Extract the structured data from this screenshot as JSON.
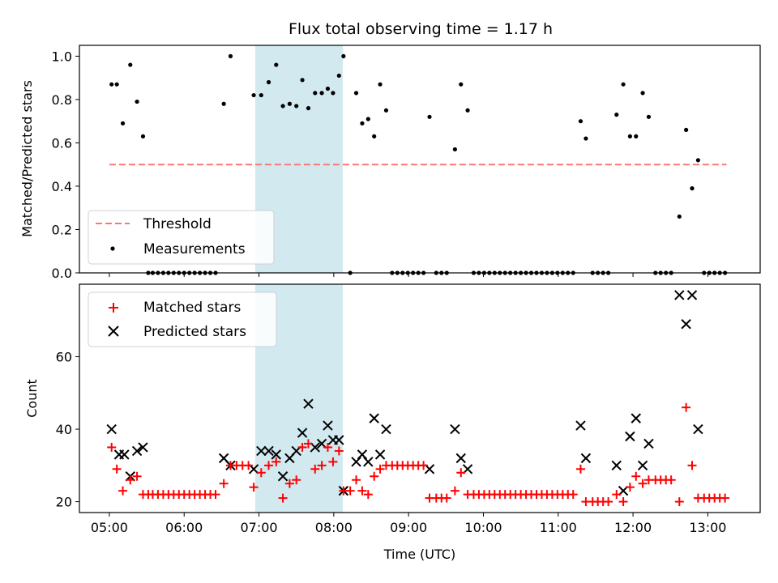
{
  "chart_data": [
    {
      "type": "scatter",
      "title": "Flux total observing time = 1.17 h",
      "xlabel": "",
      "ylabel": "Matched/Predicted stars",
      "xlim": [
        4.6,
        13.7
      ],
      "ylim": [
        0.0,
        1.05
      ],
      "yticks": [
        "0.0",
        "0.2",
        "0.4",
        "0.6",
        "0.8",
        "1.0"
      ],
      "highlight_span": {
        "x0": 6.95,
        "x1": 8.12,
        "color": "#d2e9f0"
      },
      "grid": false,
      "legend": {
        "position": "lower-left",
        "entries": [
          "Threshold",
          "Measurements"
        ]
      },
      "series": [
        {
          "name": "Threshold",
          "kind": "line",
          "color": "#ff7575",
          "x": [
            5.0,
            13.25
          ],
          "y": [
            0.5,
            0.5
          ]
        },
        {
          "name": "Measurements",
          "kind": "points",
          "color": "#000000",
          "points": [
            [
              5.03,
              0.87
            ],
            [
              5.1,
              0.87
            ],
            [
              5.18,
              0.69
            ],
            [
              5.28,
              0.96
            ],
            [
              5.37,
              0.79
            ],
            [
              5.45,
              0.63
            ],
            [
              5.52,
              0
            ],
            [
              5.58,
              0
            ],
            [
              5.65,
              0
            ],
            [
              5.72,
              0
            ],
            [
              5.79,
              0
            ],
            [
              5.86,
              0
            ],
            [
              5.93,
              0
            ],
            [
              6.0,
              0
            ],
            [
              6.07,
              0
            ],
            [
              6.14,
              0
            ],
            [
              6.21,
              0
            ],
            [
              6.28,
              0
            ],
            [
              6.35,
              0
            ],
            [
              6.42,
              0
            ],
            [
              6.53,
              0.78
            ],
            [
              6.62,
              1.0
            ],
            [
              6.93,
              0.82
            ],
            [
              7.03,
              0.82
            ],
            [
              7.13,
              0.88
            ],
            [
              7.23,
              0.96
            ],
            [
              7.32,
              0.77
            ],
            [
              7.41,
              0.78
            ],
            [
              7.5,
              0.77
            ],
            [
              7.58,
              0.89
            ],
            [
              7.66,
              0.76
            ],
            [
              7.75,
              0.83
            ],
            [
              7.84,
              0.83
            ],
            [
              7.92,
              0.85
            ],
            [
              7.99,
              0.83
            ],
            [
              8.07,
              0.91
            ],
            [
              8.13,
              1.0
            ],
            [
              8.22,
              0
            ],
            [
              8.3,
              0.83
            ],
            [
              8.38,
              0.69
            ],
            [
              8.46,
              0.71
            ],
            [
              8.54,
              0.63
            ],
            [
              8.62,
              0.87
            ],
            [
              8.7,
              0.75
            ],
            [
              8.78,
              0
            ],
            [
              8.85,
              0
            ],
            [
              8.92,
              0
            ],
            [
              8.99,
              0
            ],
            [
              9.06,
              0
            ],
            [
              9.13,
              0
            ],
            [
              9.2,
              0
            ],
            [
              9.28,
              0.72
            ],
            [
              9.37,
              0
            ],
            [
              9.44,
              0
            ],
            [
              9.51,
              0
            ],
            [
              9.62,
              0.57
            ],
            [
              9.7,
              0.87
            ],
            [
              9.79,
              0.75
            ],
            [
              9.87,
              0
            ],
            [
              9.94,
              0
            ],
            [
              10.01,
              0
            ],
            [
              10.08,
              0
            ],
            [
              10.15,
              0
            ],
            [
              10.22,
              0
            ],
            [
              10.29,
              0
            ],
            [
              10.36,
              0
            ],
            [
              10.43,
              0
            ],
            [
              10.5,
              0
            ],
            [
              10.57,
              0
            ],
            [
              10.64,
              0
            ],
            [
              10.71,
              0
            ],
            [
              10.78,
              0
            ],
            [
              10.85,
              0
            ],
            [
              10.92,
              0
            ],
            [
              10.99,
              0
            ],
            [
              11.06,
              0
            ],
            [
              11.13,
              0
            ],
            [
              11.2,
              0
            ],
            [
              11.3,
              0.7
            ],
            [
              11.37,
              0.62
            ],
            [
              11.46,
              0
            ],
            [
              11.53,
              0
            ],
            [
              11.6,
              0
            ],
            [
              11.67,
              0
            ],
            [
              11.78,
              0.73
            ],
            [
              11.87,
              0.87
            ],
            [
              11.96,
              0.63
            ],
            [
              12.04,
              0.63
            ],
            [
              12.13,
              0.83
            ],
            [
              12.21,
              0.72
            ],
            [
              12.3,
              0
            ],
            [
              12.37,
              0
            ],
            [
              12.44,
              0
            ],
            [
              12.51,
              0
            ],
            [
              12.62,
              0.26
            ],
            [
              12.71,
              0.66
            ],
            [
              12.79,
              0.39
            ],
            [
              12.87,
              0.52
            ],
            [
              12.95,
              0
            ],
            [
              13.02,
              0
            ],
            [
              13.09,
              0
            ],
            [
              13.16,
              0
            ],
            [
              13.23,
              0
            ]
          ]
        }
      ]
    },
    {
      "type": "scatter",
      "title": "",
      "xlabel": "Time (UTC)",
      "ylabel": "Count",
      "xlim": [
        4.6,
        13.7
      ],
      "ylim": [
        17,
        80
      ],
      "xticks": [
        5,
        6,
        7,
        8,
        9,
        10,
        11,
        12,
        13
      ],
      "xtick_labels": [
        "05:00",
        "06:00",
        "07:00",
        "08:00",
        "09:00",
        "10:00",
        "11:00",
        "12:00",
        "13:00"
      ],
      "yticks": [
        "20",
        "40",
        "60"
      ],
      "highlight_span": {
        "x0": 6.95,
        "x1": 8.12,
        "color": "#d2e9f0"
      },
      "grid": false,
      "legend": {
        "position": "upper-left",
        "entries": [
          "Matched stars",
          "Predicted stars"
        ]
      },
      "series": [
        {
          "name": "Matched stars",
          "kind": "plus",
          "color": "#ff0000",
          "points": [
            [
              5.03,
              35
            ],
            [
              5.1,
              29
            ],
            [
              5.18,
              23
            ],
            [
              5.28,
              26
            ],
            [
              5.37,
              27
            ],
            [
              5.45,
              22
            ],
            [
              5.52,
              22
            ],
            [
              5.58,
              22
            ],
            [
              5.65,
              22
            ],
            [
              5.72,
              22
            ],
            [
              5.79,
              22
            ],
            [
              5.86,
              22
            ],
            [
              5.93,
              22
            ],
            [
              6.0,
              22
            ],
            [
              6.07,
              22
            ],
            [
              6.14,
              22
            ],
            [
              6.21,
              22
            ],
            [
              6.28,
              22
            ],
            [
              6.35,
              22
            ],
            [
              6.42,
              22
            ],
            [
              6.53,
              25
            ],
            [
              6.62,
              30
            ],
            [
              6.7,
              30
            ],
            [
              6.78,
              30
            ],
            [
              6.86,
              30
            ],
            [
              6.93,
              24
            ],
            [
              7.03,
              28
            ],
            [
              7.13,
              30
            ],
            [
              7.23,
              31
            ],
            [
              7.32,
              21
            ],
            [
              7.41,
              25
            ],
            [
              7.5,
              26
            ],
            [
              7.58,
              35
            ],
            [
              7.66,
              36
            ],
            [
              7.75,
              29
            ],
            [
              7.84,
              30
            ],
            [
              7.92,
              35
            ],
            [
              7.99,
              31
            ],
            [
              8.07,
              34
            ],
            [
              8.13,
              23
            ],
            [
              8.22,
              23
            ],
            [
              8.3,
              26
            ],
            [
              8.38,
              23
            ],
            [
              8.46,
              22
            ],
            [
              8.54,
              27
            ],
            [
              8.62,
              29
            ],
            [
              8.7,
              30
            ],
            [
              8.78,
              30
            ],
            [
              8.85,
              30
            ],
            [
              8.92,
              30
            ],
            [
              8.99,
              30
            ],
            [
              9.06,
              30
            ],
            [
              9.13,
              30
            ],
            [
              9.2,
              30
            ],
            [
              9.28,
              21
            ],
            [
              9.37,
              21
            ],
            [
              9.44,
              21
            ],
            [
              9.51,
              21
            ],
            [
              9.62,
              23
            ],
            [
              9.7,
              28
            ],
            [
              9.79,
              22
            ],
            [
              9.87,
              22
            ],
            [
              9.94,
              22
            ],
            [
              10.01,
              22
            ],
            [
              10.08,
              22
            ],
            [
              10.15,
              22
            ],
            [
              10.22,
              22
            ],
            [
              10.29,
              22
            ],
            [
              10.36,
              22
            ],
            [
              10.43,
              22
            ],
            [
              10.5,
              22
            ],
            [
              10.57,
              22
            ],
            [
              10.64,
              22
            ],
            [
              10.71,
              22
            ],
            [
              10.78,
              22
            ],
            [
              10.85,
              22
            ],
            [
              10.92,
              22
            ],
            [
              10.99,
              22
            ],
            [
              11.06,
              22
            ],
            [
              11.13,
              22
            ],
            [
              11.2,
              22
            ],
            [
              11.3,
              29
            ],
            [
              11.37,
              20
            ],
            [
              11.46,
              20
            ],
            [
              11.53,
              20
            ],
            [
              11.6,
              20
            ],
            [
              11.67,
              20
            ],
            [
              11.78,
              22
            ],
            [
              11.87,
              20
            ],
            [
              11.96,
              24
            ],
            [
              12.04,
              27
            ],
            [
              12.13,
              25
            ],
            [
              12.21,
              26
            ],
            [
              12.3,
              26
            ],
            [
              12.37,
              26
            ],
            [
              12.44,
              26
            ],
            [
              12.51,
              26
            ],
            [
              12.62,
              20
            ],
            [
              12.71,
              46
            ],
            [
              12.79,
              30
            ],
            [
              12.87,
              21
            ],
            [
              12.95,
              21
            ],
            [
              13.02,
              21
            ],
            [
              13.09,
              21
            ],
            [
              13.16,
              21
            ],
            [
              13.23,
              21
            ]
          ]
        },
        {
          "name": "Predicted stars",
          "kind": "x",
          "color": "#000000",
          "points": [
            [
              5.03,
              40
            ],
            [
              5.13,
              33
            ],
            [
              5.2,
              33
            ],
            [
              5.28,
              27
            ],
            [
              5.37,
              34
            ],
            [
              5.45,
              35
            ],
            [
              6.53,
              32
            ],
            [
              6.62,
              30
            ],
            [
              6.93,
              29
            ],
            [
              7.03,
              34
            ],
            [
              7.13,
              34
            ],
            [
              7.23,
              33
            ],
            [
              7.32,
              27
            ],
            [
              7.41,
              32
            ],
            [
              7.5,
              34
            ],
            [
              7.58,
              39
            ],
            [
              7.66,
              47
            ],
            [
              7.75,
              35
            ],
            [
              7.84,
              36
            ],
            [
              7.92,
              41
            ],
            [
              7.99,
              37
            ],
            [
              8.07,
              37
            ],
            [
              8.13,
              23
            ],
            [
              8.3,
              31
            ],
            [
              8.38,
              33
            ],
            [
              8.46,
              31
            ],
            [
              8.54,
              43
            ],
            [
              8.62,
              33
            ],
            [
              8.7,
              40
            ],
            [
              9.28,
              29
            ],
            [
              9.62,
              40
            ],
            [
              9.7,
              32
            ],
            [
              9.79,
              29
            ],
            [
              11.3,
              41
            ],
            [
              11.37,
              32
            ],
            [
              11.78,
              30
            ],
            [
              11.87,
              23
            ],
            [
              11.96,
              38
            ],
            [
              12.04,
              43
            ],
            [
              12.13,
              30
            ],
            [
              12.21,
              36
            ],
            [
              12.62,
              77
            ],
            [
              12.71,
              69
            ],
            [
              12.79,
              77
            ],
            [
              12.87,
              40
            ]
          ]
        }
      ]
    }
  ]
}
